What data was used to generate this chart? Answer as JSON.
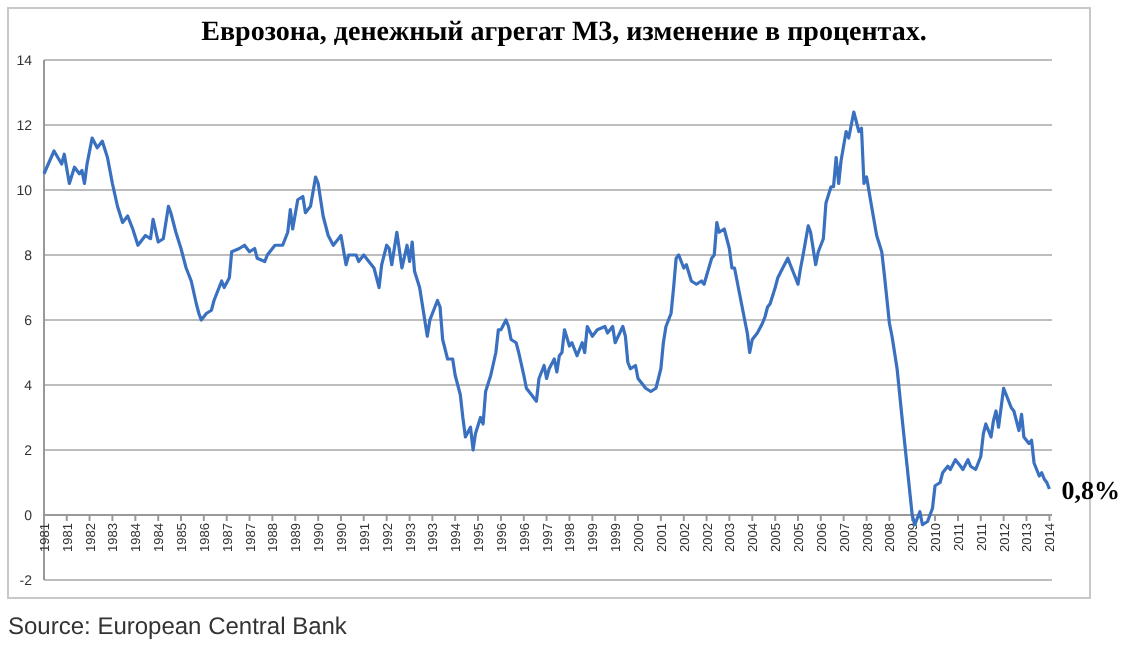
{
  "chart_data": {
    "type": "line",
    "title": "Еврозона, денежный агрегат М3, изменение в процентах.",
    "xlim": [
      "1981-01",
      "2014-02"
    ],
    "ylim": [
      -2,
      14
    ],
    "yticks": [
      -2,
      0,
      2,
      4,
      6,
      8,
      10,
      12,
      14
    ],
    "grid": "y",
    "xticks": [
      {
        "value": "1981-01",
        "label": "1981"
      },
      {
        "value": "1981-10",
        "label": "1981"
      },
      {
        "value": "1982-07",
        "label": "1982"
      },
      {
        "value": "1983-04",
        "label": "1983"
      },
      {
        "value": "1984-01",
        "label": "1984"
      },
      {
        "value": "1984-10",
        "label": "1984"
      },
      {
        "value": "1985-07",
        "label": "1985"
      },
      {
        "value": "1986-04",
        "label": "1986"
      },
      {
        "value": "1987-01",
        "label": "1987"
      },
      {
        "value": "1987-10",
        "label": "1987"
      },
      {
        "value": "1988-07",
        "label": "1988"
      },
      {
        "value": "1989-04",
        "label": "1989"
      },
      {
        "value": "1990-01",
        "label": "1990"
      },
      {
        "value": "1990-10",
        "label": "1990"
      },
      {
        "value": "1991-07",
        "label": "1991"
      },
      {
        "value": "1992-04",
        "label": "1992"
      },
      {
        "value": "1993-01",
        "label": "1993"
      },
      {
        "value": "1993-10",
        "label": "1993"
      },
      {
        "value": "1994-07",
        "label": "1994"
      },
      {
        "value": "1995-04",
        "label": "1995"
      },
      {
        "value": "1996-01",
        "label": "1996"
      },
      {
        "value": "1996-10",
        "label": "1996"
      },
      {
        "value": "1997-07",
        "label": "1997"
      },
      {
        "value": "1998-04",
        "label": "1998"
      },
      {
        "value": "1999-01",
        "label": "1999"
      },
      {
        "value": "1999-10",
        "label": "1999"
      },
      {
        "value": "2000-07",
        "label": "2000"
      },
      {
        "value": "2001-04",
        "label": "2001"
      },
      {
        "value": "2002-01",
        "label": "2002"
      },
      {
        "value": "2002-10",
        "label": "2002"
      },
      {
        "value": "2003-07",
        "label": "2003"
      },
      {
        "value": "2004-04",
        "label": "2004"
      },
      {
        "value": "2005-01",
        "label": "2005"
      },
      {
        "value": "2005-10",
        "label": "2005"
      },
      {
        "value": "2006-07",
        "label": "2006"
      },
      {
        "value": "2007-04",
        "label": "2007"
      },
      {
        "value": "2008-01",
        "label": "2008"
      },
      {
        "value": "2008-10",
        "label": "2008"
      },
      {
        "value": "2009-07",
        "label": "2009"
      },
      {
        "value": "2010-04",
        "label": "2010"
      },
      {
        "value": "2011-01",
        "label": "2011"
      },
      {
        "value": "2011-10",
        "label": "2011"
      },
      {
        "value": "2012-07",
        "label": "2012"
      },
      {
        "value": "2013-04",
        "label": "2013"
      },
      {
        "value": "2014-01",
        "label": "2014"
      }
    ],
    "annotations": [
      {
        "text": "0,8%",
        "x": "2014-01",
        "y": 0.8
      },
      "Source: European Central Bank"
    ],
    "series": [
      {
        "color": "#3a70c0",
        "line_style": "solid",
        "marker": "none",
        "x": [
          "1981-01",
          "1981-05",
          "1981-08",
          "1981-09",
          "1981-11",
          "1982-01",
          "1982-03",
          "1982-04",
          "1982-05",
          "1982-06",
          "1982-08",
          "1982-10",
          "1982-12",
          "1983-02",
          "1983-04",
          "1983-06",
          "1983-08",
          "1983-10",
          "1983-12",
          "1984-02",
          "1984-05",
          "1984-07",
          "1984-08",
          "1984-10",
          "1984-12",
          "1985-02",
          "1985-03",
          "1985-05",
          "1985-07",
          "1985-09",
          "1985-11",
          "1986-01",
          "1986-02",
          "1986-03",
          "1986-05",
          "1986-07",
          "1986-08",
          "1986-11",
          "1986-12",
          "1987-02",
          "1987-03",
          "1987-06",
          "1987-08",
          "1987-10",
          "1987-12",
          "1988-01",
          "1988-04",
          "1988-05",
          "1988-08",
          "1988-11",
          "1989-01",
          "1989-02",
          "1989-03",
          "1989-05",
          "1989-07",
          "1989-08",
          "1989-10",
          "1989-12",
          "1990-01",
          "1990-03",
          "1990-05",
          "1990-07",
          "1990-09",
          "1990-10",
          "1990-12",
          "1991-01",
          "1991-04",
          "1991-05",
          "1991-07",
          "1991-10",
          "1991-11",
          "1992-01",
          "1992-02",
          "1992-04",
          "1992-05",
          "1992-06",
          "1992-08",
          "1992-10",
          "1992-12",
          "1993-01",
          "1993-02",
          "1993-03",
          "1993-05",
          "1993-06",
          "1993-08",
          "1993-09",
          "1993-10",
          "1993-12",
          "1994-01",
          "1994-02",
          "1994-04",
          "1994-06",
          "1994-07",
          "1994-09",
          "1994-10",
          "1994-11",
          "1995-01",
          "1995-02",
          "1995-03",
          "1995-05",
          "1995-06",
          "1995-07",
          "1995-09",
          "1995-11",
          "1995-12",
          "1996-01",
          "1996-03",
          "1996-04",
          "1996-05",
          "1996-07",
          "1996-08",
          "1996-10",
          "1996-11",
          "1997-01",
          "1997-03",
          "1997-04",
          "1997-06",
          "1997-07",
          "1997-08",
          "1997-10",
          "1997-11",
          "1997-12",
          "1998-01",
          "1998-02",
          "1998-04",
          "1998-05",
          "1998-07",
          "1998-09",
          "1998-10",
          "1998-11",
          "1999-01",
          "1999-03",
          "1999-06",
          "1999-07",
          "1999-09",
          "1999-10",
          "2000-01",
          "2000-02",
          "2000-03",
          "2000-04",
          "2000-06",
          "2000-07",
          "2000-09",
          "2000-10",
          "2000-12",
          "2001-02",
          "2001-04",
          "2001-05",
          "2001-06",
          "2001-08",
          "2001-09",
          "2001-10",
          "2001-11",
          "2002-01",
          "2002-02",
          "2002-04",
          "2002-06",
          "2002-08",
          "2002-09",
          "2002-12",
          "2003-01",
          "2003-02",
          "2003-03",
          "2003-05",
          "2003-07",
          "2003-08",
          "2003-09",
          "2003-11",
          "2004-01",
          "2004-02",
          "2004-03",
          "2004-04",
          "2004-06",
          "2004-08",
          "2004-09",
          "2004-10",
          "2004-11",
          "2005-01",
          "2005-02",
          "2005-04",
          "2005-06",
          "2005-07",
          "2005-09",
          "2005-10",
          "2005-11",
          "2005-12",
          "2006-02",
          "2006-03",
          "2006-05",
          "2006-06",
          "2006-08",
          "2006-09",
          "2006-11",
          "2006-12",
          "2007-01",
          "2007-02",
          "2007-03",
          "2007-05",
          "2007-06",
          "2007-08",
          "2007-10",
          "2007-11",
          "2007-12",
          "2008-01",
          "2008-03",
          "2008-05",
          "2008-07",
          "2008-08",
          "2008-10",
          "2008-11",
          "2009-01",
          "2009-03",
          "2009-05",
          "2009-07",
          "2009-08",
          "2009-10",
          "2009-11",
          "2010-01",
          "2010-03",
          "2010-04",
          "2010-06",
          "2010-07",
          "2010-09",
          "2010-10",
          "2010-12",
          "2011-02",
          "2011-03",
          "2011-05",
          "2011-06",
          "2011-08",
          "2011-10",
          "2011-11",
          "2011-12",
          "2012-02",
          "2012-03",
          "2012-04",
          "2012-05",
          "2012-07",
          "2012-08",
          "2012-10",
          "2012-11",
          "2013-01",
          "2013-02",
          "2013-03",
          "2013-05",
          "2013-06",
          "2013-07",
          "2013-09",
          "2013-10",
          "2013-11",
          "2013-12",
          "2014-01"
        ],
        "values": [
          10.5,
          11.2,
          10.8,
          11.1,
          10.2,
          10.7,
          10.5,
          10.6,
          10.2,
          10.8,
          11.6,
          11.3,
          11.5,
          11.0,
          10.2,
          9.5,
          9.0,
          9.2,
          8.8,
          8.3,
          8.6,
          8.5,
          9.1,
          8.4,
          8.5,
          9.5,
          9.3,
          8.7,
          8.2,
          7.6,
          7.2,
          6.5,
          6.2,
          6.0,
          6.2,
          6.3,
          6.6,
          7.2,
          7.0,
          7.3,
          8.1,
          8.2,
          8.3,
          8.1,
          8.2,
          7.9,
          7.8,
          8.0,
          8.3,
          8.3,
          8.7,
          9.4,
          8.8,
          9.7,
          9.8,
          9.3,
          9.5,
          10.4,
          10.2,
          9.2,
          8.6,
          8.3,
          8.5,
          8.6,
          7.7,
          8.0,
          8.0,
          7.8,
          8.0,
          7.7,
          7.6,
          7.0,
          7.7,
          8.3,
          8.2,
          7.7,
          8.7,
          7.6,
          8.3,
          7.8,
          8.4,
          7.5,
          7.0,
          6.5,
          5.5,
          6.0,
          6.2,
          6.6,
          6.4,
          5.4,
          4.8,
          4.8,
          4.3,
          3.7,
          3.0,
          2.4,
          2.7,
          2.0,
          2.5,
          3.0,
          2.8,
          3.8,
          4.3,
          5.0,
          5.7,
          5.7,
          6.0,
          5.8,
          5.4,
          5.3,
          5.0,
          4.3,
          3.9,
          3.7,
          3.5,
          4.2,
          4.6,
          4.2,
          4.5,
          4.8,
          4.4,
          4.9,
          5.0,
          5.7,
          5.2,
          5.3,
          4.9,
          5.3,
          5.0,
          5.8,
          5.5,
          5.7,
          5.8,
          5.6,
          5.8,
          5.3,
          5.8,
          5.5,
          4.7,
          4.5,
          4.6,
          4.2,
          4.0,
          3.9,
          3.8,
          3.9,
          4.5,
          5.3,
          5.8,
          6.2,
          7.0,
          7.9,
          8.0,
          7.6,
          7.7,
          7.2,
          7.1,
          7.2,
          7.1,
          7.9,
          8.0,
          9.0,
          8.7,
          8.8,
          8.2,
          7.6,
          7.6,
          6.8,
          6.0,
          5.6,
          5.0,
          5.4,
          5.6,
          5.9,
          6.1,
          6.4,
          6.5,
          7.0,
          7.3,
          7.6,
          7.9,
          7.7,
          7.3,
          7.1,
          7.6,
          8.0,
          8.9,
          8.7,
          7.7,
          8.1,
          8.5,
          9.6,
          10.1,
          10.1,
          11.0,
          10.2,
          10.9,
          11.8,
          11.6,
          12.4,
          11.8,
          11.9,
          10.2,
          10.4,
          9.5,
          8.6,
          8.1,
          7.4,
          5.9,
          5.5,
          4.5,
          3.0,
          1.5,
          0.0,
          -0.3,
          0.1,
          -0.3,
          -0.2,
          0.2,
          0.9,
          1.0,
          1.3,
          1.5,
          1.4,
          1.7,
          1.5,
          1.4,
          1.7,
          1.5,
          1.4,
          1.8,
          2.5,
          2.8,
          2.4,
          2.9,
          3.2,
          2.7,
          3.9,
          3.7,
          3.3,
          3.2,
          2.6,
          3.1,
          2.4,
          2.2,
          2.3,
          1.6,
          1.2,
          1.3,
          1.1,
          1.0,
          0.8
        ]
      }
    ]
  }
}
